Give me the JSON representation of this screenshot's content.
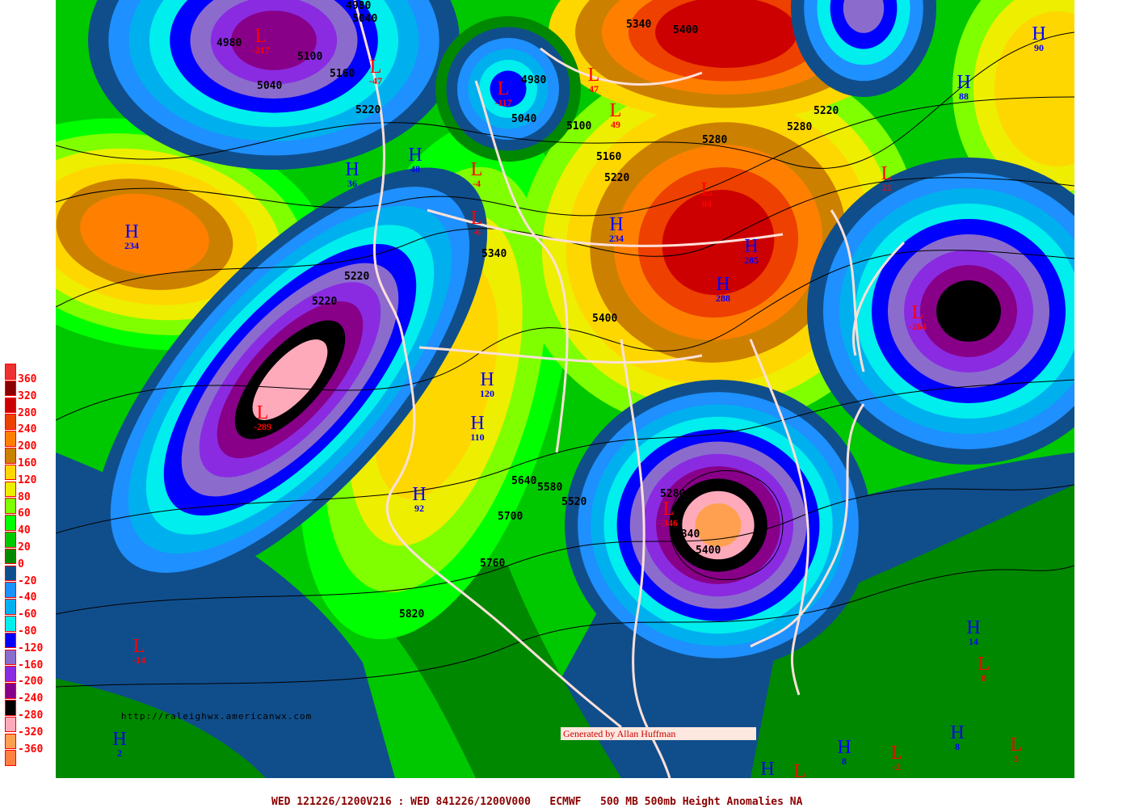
{
  "caption": "WED 121226/1200V216 : WED 841226/1200V000   ECMWF   500 MB 500mb Height Anomalies NA",
  "credit": "Generated by Allan Huffman",
  "url": "http://raleighwx.americanwx.com",
  "colors": {
    "coastline": "#fde0d8",
    "contour": "#000000",
    "high": "#0000ff",
    "low": "#ff0000"
  },
  "legend": [
    {
      "label": "360",
      "color": "#f03030"
    },
    {
      "label": "320",
      "color": "#8b0000"
    },
    {
      "label": "280",
      "color": "#cc0000"
    },
    {
      "label": "240",
      "color": "#ee4000"
    },
    {
      "label": "200",
      "color": "#ff8000"
    },
    {
      "label": "160",
      "color": "#cc8000"
    },
    {
      "label": "120",
      "color": "#ffd700"
    },
    {
      "label": "80",
      "color": "#eeee00"
    },
    {
      "label": "60",
      "color": "#80ff00"
    },
    {
      "label": "40",
      "color": "#00ff00"
    },
    {
      "label": "20",
      "color": "#00c800"
    },
    {
      "label": "0",
      "color": "#008800"
    },
    {
      "label": "-20",
      "color": "#104e8b"
    },
    {
      "label": "-40",
      "color": "#1e90ff"
    },
    {
      "label": "-60",
      "color": "#00b0ee"
    },
    {
      "label": "-80",
      "color": "#00eeee"
    },
    {
      "label": "-120",
      "color": "#0000ff"
    },
    {
      "label": "-160",
      "color": "#8b6ccd"
    },
    {
      "label": "-200",
      "color": "#8a2be2"
    },
    {
      "label": "-240",
      "color": "#880088"
    },
    {
      "label": "-280",
      "color": "#000000"
    },
    {
      "label": "-320",
      "color": "#ffaabb"
    },
    {
      "label": "-360",
      "color": "#ffa050"
    },
    {
      "label": "",
      "color": "#ff8040"
    }
  ],
  "markers": [
    {
      "type": "L",
      "value": "-217"
    },
    {
      "type": "L",
      "value": "-47"
    },
    {
      "type": "L",
      "value": "-117"
    },
    {
      "type": "L",
      "value": "47"
    },
    {
      "type": "L",
      "value": "49"
    },
    {
      "type": "H",
      "value": "48"
    },
    {
      "type": "H",
      "value": "36"
    },
    {
      "type": "L",
      "value": "-4"
    },
    {
      "type": "L",
      "value": "-6"
    },
    {
      "type": "H",
      "value": "234"
    },
    {
      "type": "H",
      "value": "234"
    },
    {
      "type": "L",
      "value": "84"
    },
    {
      "type": "H",
      "value": "285"
    },
    {
      "type": "H",
      "value": "288"
    },
    {
      "type": "L",
      "value": "21"
    },
    {
      "type": "H",
      "value": "90"
    },
    {
      "type": "H",
      "value": "88"
    },
    {
      "type": "L",
      "value": "-264"
    },
    {
      "type": "H",
      "value": "120"
    },
    {
      "type": "H",
      "value": "110"
    },
    {
      "type": "L",
      "value": "-289"
    },
    {
      "type": "H",
      "value": "92"
    },
    {
      "type": "L",
      "value": "-346"
    },
    {
      "type": "L",
      "value": "-14"
    },
    {
      "type": "H",
      "value": "2"
    },
    {
      "type": "H",
      "value": "14"
    },
    {
      "type": "L",
      "value": "8"
    },
    {
      "type": "H",
      "value": "8"
    },
    {
      "type": "L",
      "value": "3"
    },
    {
      "type": "L",
      "value": "-2"
    },
    {
      "type": "H",
      "value": "8"
    },
    {
      "type": "H",
      "value": ""
    },
    {
      "type": "L",
      "value": ""
    }
  ],
  "contour_labels": [
    "4980",
    "4980",
    "5040",
    "5100",
    "5040",
    "5160",
    "5220",
    "4980",
    "5040",
    "5100",
    "5160",
    "5220",
    "5340",
    "5400",
    "5280",
    "5280",
    "5220",
    "5220",
    "5220",
    "5340",
    "5400",
    "5640",
    "5580",
    "5520",
    "5700",
    "5760",
    "5820",
    "5280",
    "5340",
    "5400"
  ]
}
